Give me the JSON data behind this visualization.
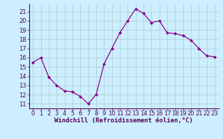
{
  "x": [
    0,
    1,
    2,
    3,
    4,
    5,
    6,
    7,
    8,
    9,
    10,
    11,
    12,
    13,
    14,
    15,
    16,
    17,
    18,
    19,
    20,
    21,
    22,
    23
  ],
  "y": [
    15.5,
    16.0,
    13.9,
    13.0,
    12.4,
    12.3,
    11.8,
    11.0,
    12.0,
    15.3,
    17.0,
    18.7,
    20.0,
    21.3,
    20.8,
    19.8,
    20.0,
    18.7,
    18.6,
    18.4,
    17.9,
    17.0,
    16.2,
    16.1
  ],
  "line_color": "#8B008B",
  "marker": "D",
  "marker_size": 2.0,
  "bg_color": "#cceeff",
  "grid_color": "#aacccc",
  "xlabel": "Windchill (Refroidissement éolien,°C)",
  "xlabel_fontsize": 6.5,
  "tick_fontsize": 6.0,
  "xlim": [
    -0.5,
    23.5
  ],
  "ylim": [
    10.5,
    21.8
  ],
  "yticks": [
    11,
    12,
    13,
    14,
    15,
    16,
    17,
    18,
    19,
    20,
    21
  ],
  "xticks": [
    0,
    1,
    2,
    3,
    4,
    5,
    6,
    7,
    8,
    9,
    10,
    11,
    12,
    13,
    14,
    15,
    16,
    17,
    18,
    19,
    20,
    21,
    22,
    23
  ]
}
